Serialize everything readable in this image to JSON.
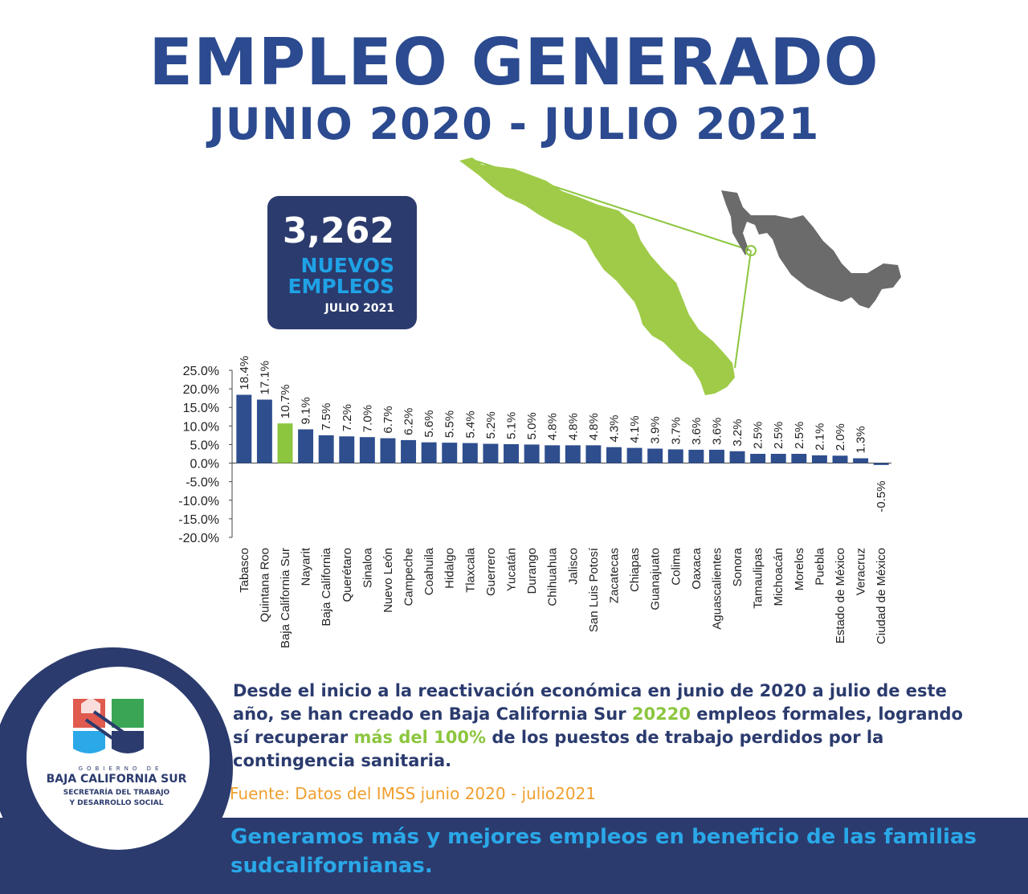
{
  "header": {
    "title": "EMPLEO GENERADO",
    "subtitle": "JUNIO 2020 - JULIO 2021"
  },
  "badge": {
    "number": "3,262",
    "line1": "NUEVOS",
    "line2": "EMPLEOS",
    "line3": "JULIO 2021"
  },
  "colors": {
    "navy": "#2b3b6e",
    "bar_blue": "#2e4e8e",
    "highlight_green": "#8cc63f",
    "accent_cyan": "#2aa8e8",
    "source_orange": "#f0a030",
    "map_gray": "#6b6b6b"
  },
  "chart_data": {
    "type": "bar",
    "title": "",
    "xlabel": "",
    "ylabel": "",
    "ylim": [
      -20,
      25
    ],
    "yticks": [
      "25.0%",
      "20.0%",
      "15.0%",
      "10.0%",
      "5.0%",
      "0.0%",
      "-5.0%",
      "-10.0%",
      "-15.0%",
      "-20.0%"
    ],
    "ytick_values": [
      25,
      20,
      15,
      10,
      5,
      0,
      -5,
      -10,
      -15,
      -20
    ],
    "highlight_category": "Baja California Sur",
    "categories": [
      "Tabasco",
      "Quintana Roo",
      "Baja California Sur",
      "Nayarit",
      "Baja California",
      "Querétaro",
      "Sinaloa",
      "Nuevo León",
      "Campeche",
      "Coahuila",
      "Hidalgo",
      "Tlaxcala",
      "Guerrero",
      "Yucatán",
      "Durango",
      "Chihuahua",
      "Jalisco",
      "San Luis Potosí",
      "Zacatecas",
      "Chiapas",
      "Guanajuato",
      "Colima",
      "Oaxaca",
      "Aguascalientes",
      "Sonora",
      "Tamaulipas",
      "Michoacán",
      "Morelos",
      "Puebla",
      "Estado de México",
      "Veracruz",
      "Ciudad de México"
    ],
    "values": [
      18.4,
      17.1,
      10.7,
      9.1,
      7.5,
      7.2,
      7.0,
      6.7,
      6.2,
      5.6,
      5.5,
      5.4,
      5.2,
      5.1,
      5.0,
      4.8,
      4.8,
      4.8,
      4.3,
      4.1,
      3.9,
      3.7,
      3.6,
      3.6,
      3.2,
      2.5,
      2.5,
      2.5,
      2.1,
      2.0,
      1.3,
      -0.5
    ],
    "labels": [
      "18.4%",
      "17.1%",
      "10.7%",
      "9.1%",
      "7.5%",
      "7.2%",
      "7.0%",
      "6.7%",
      "6.2%",
      "5.6%",
      "5.5%",
      "5.4%",
      "5.2%",
      "5.1%",
      "5.0%",
      "4.8%",
      "4.8%",
      "4.8%",
      "4.3%",
      "4.1%",
      "3.9%",
      "3.7%",
      "3.6%",
      "3.6%",
      "3.2%",
      "2.5%",
      "2.5%",
      "2.5%",
      "2.1%",
      "2.0%",
      "1.3%",
      "-0.5%"
    ]
  },
  "logo": {
    "gobierno": "GOBIERNO DE",
    "state": "BAJA CALIFORNIA SUR",
    "dept_line1": "SECRETARÍA DEL TRABAJO",
    "dept_line2": "Y DESARROLLO SOCIAL"
  },
  "description": {
    "part1": "Desde el inicio a la reactivación económica en junio de  2020 a julio de este año, se han creado en Baja California Sur ",
    "highlight1": "20220",
    "part2": " empleos formales, logrando sí recuperar ",
    "highlight2": "más del 100%",
    "part3": " de los puestos de trabajo perdidos por la contingencia sanitaria."
  },
  "source": "Fuente: Datos del IMSS junio 2020 - julio2021",
  "footer": "Generamos más y mejores empleos en beneficio de las familias sudcalifornianas."
}
